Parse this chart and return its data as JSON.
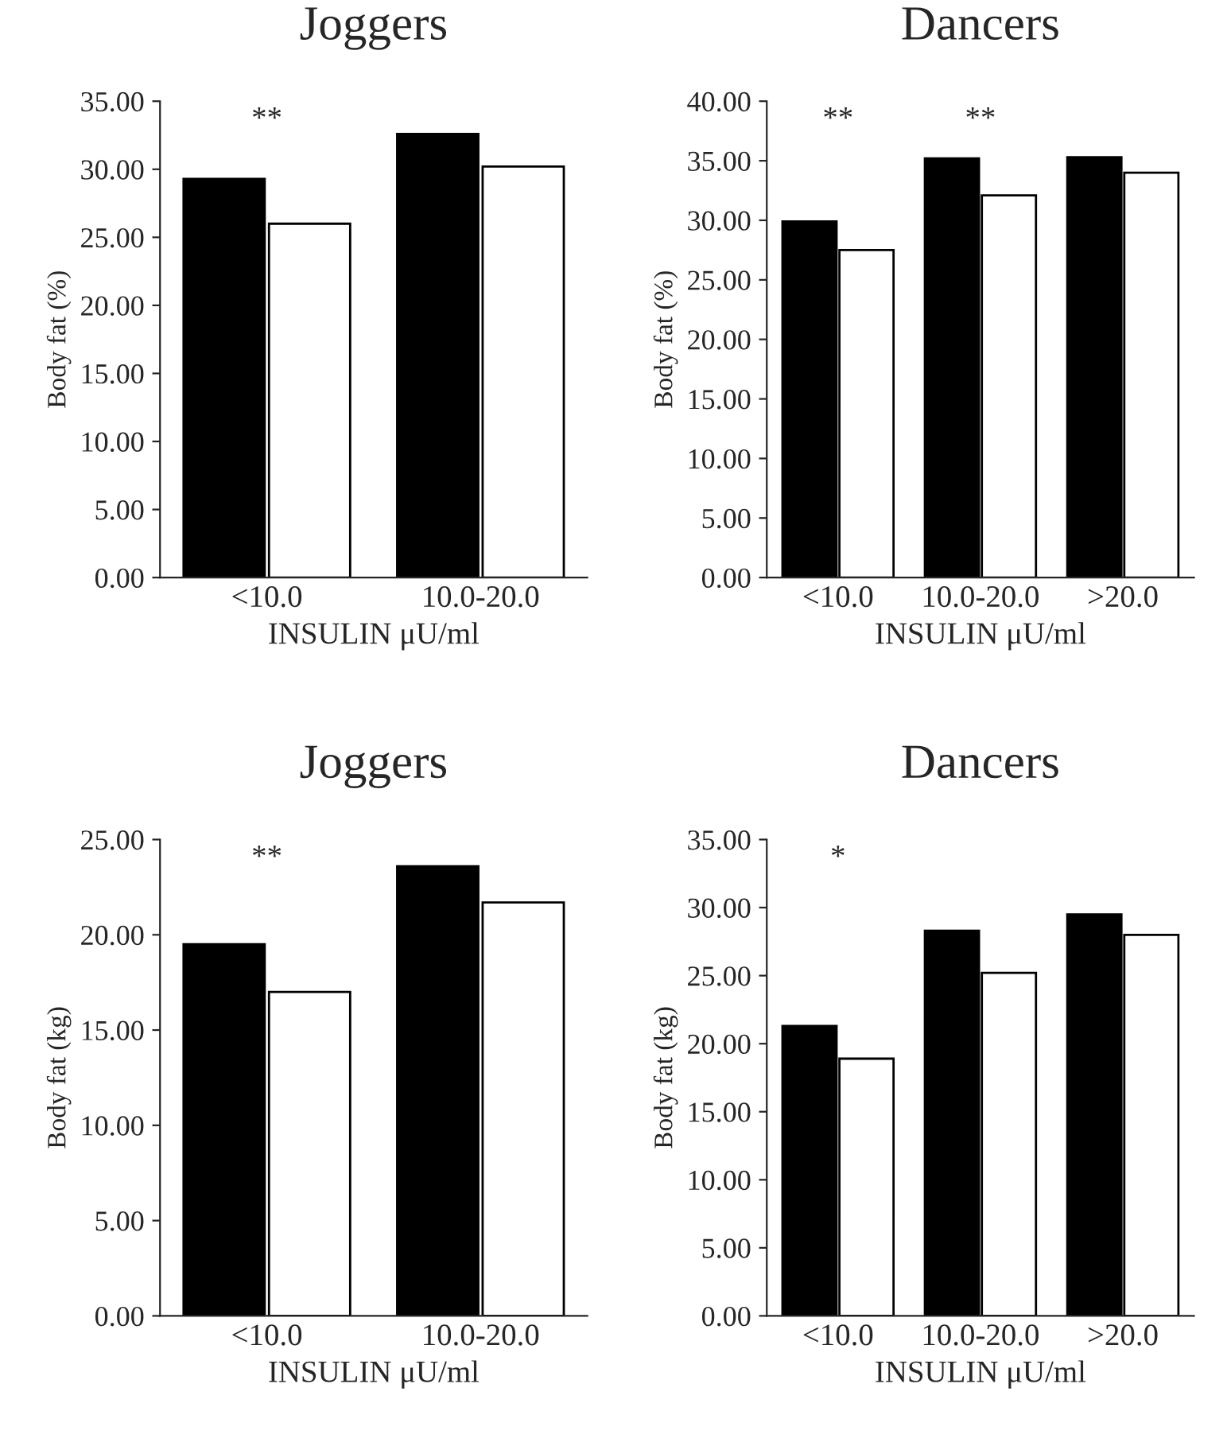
{
  "chart_data": [
    {
      "type": "bar",
      "title": "Joggers",
      "ylabel": "Body fat (%)",
      "xlabel": "INSULIN μU/ml",
      "categories": [
        "<10.0",
        "10.0-20.0"
      ],
      "series": [
        {
          "color": "#000000",
          "values": [
            29.3,
            32.6
          ]
        },
        {
          "color": "#ffffff",
          "values": [
            26.0,
            30.2
          ]
        }
      ],
      "ylim": [
        0,
        35
      ],
      "yticks": [
        {
          "value": 0,
          "label": "0.00"
        },
        {
          "value": 5,
          "label": "5.00"
        },
        {
          "value": 10,
          "label": "10.00"
        },
        {
          "value": 15,
          "label": "15.00"
        },
        {
          "value": 20,
          "label": "20.00"
        },
        {
          "value": 25,
          "label": "25.00"
        },
        {
          "value": 30,
          "label": "30.00"
        },
        {
          "value": 35,
          "label": "35.00"
        }
      ],
      "annotations": [
        "**"
      ],
      "grid": false
    },
    {
      "type": "bar",
      "title": "Dancers",
      "ylabel": "Body fat (%)",
      "xlabel": "INSULIN μU/ml",
      "categories": [
        "<10.0",
        "10.0-20.0",
        ">20.0"
      ],
      "series": [
        {
          "color": "#000000",
          "values": [
            29.9,
            35.2,
            35.3
          ]
        },
        {
          "color": "#ffffff",
          "values": [
            27.5,
            32.1,
            34.0
          ]
        }
      ],
      "ylim": [
        0,
        40
      ],
      "yticks": [
        {
          "value": 0,
          "label": "0.00"
        },
        {
          "value": 5,
          "label": "5.00"
        },
        {
          "value": 10,
          "label": "10.00"
        },
        {
          "value": 15,
          "label": "15.00"
        },
        {
          "value": 20,
          "label": "20.00"
        },
        {
          "value": 25,
          "label": "25.00"
        },
        {
          "value": 30,
          "label": "30.00"
        },
        {
          "value": 35,
          "label": "35.00"
        },
        {
          "value": 40,
          "label": "40.00"
        }
      ],
      "annotations": [
        "**",
        "**"
      ],
      "grid": false
    },
    {
      "type": "bar",
      "title": "Joggers",
      "ylabel": "Body fat (kg)",
      "xlabel": "INSULIN μU/ml",
      "categories": [
        "<10.0",
        "10.0-20.0"
      ],
      "series": [
        {
          "color": "#000000",
          "values": [
            19.5,
            23.6
          ]
        },
        {
          "color": "#ffffff",
          "values": [
            17.0,
            21.7
          ]
        }
      ],
      "ylim": [
        0,
        25
      ],
      "yticks": [
        {
          "value": 0,
          "label": "0.00"
        },
        {
          "value": 5,
          "label": "5.00"
        },
        {
          "value": 10,
          "label": "10.00"
        },
        {
          "value": 15,
          "label": "15.00"
        },
        {
          "value": 20,
          "label": "20.00"
        },
        {
          "value": 25,
          "label": "25.00"
        }
      ],
      "annotations": [
        "**"
      ],
      "grid": false
    },
    {
      "type": "bar",
      "title": "Dancers",
      "ylabel": "Body fat (kg)",
      "xlabel": "INSULIN μU/ml",
      "categories": [
        "<10.0",
        "10.0-20.0",
        ">20.0"
      ],
      "series": [
        {
          "color": "#000000",
          "values": [
            21.3,
            28.3,
            29.5
          ]
        },
        {
          "color": "#ffffff",
          "values": [
            18.9,
            25.2,
            28.0
          ]
        }
      ],
      "ylim": [
        0,
        35
      ],
      "yticks": [
        {
          "value": 0,
          "label": "0.00"
        },
        {
          "value": 5,
          "label": "5.00"
        },
        {
          "value": 10,
          "label": "10.00"
        },
        {
          "value": 15,
          "label": "15.00"
        },
        {
          "value": 20,
          "label": "20.00"
        },
        {
          "value": 25,
          "label": "25.00"
        },
        {
          "value": 30,
          "label": "30.00"
        },
        {
          "value": 35,
          "label": "35.00"
        }
      ],
      "annotations": [
        "*"
      ],
      "grid": false
    }
  ]
}
